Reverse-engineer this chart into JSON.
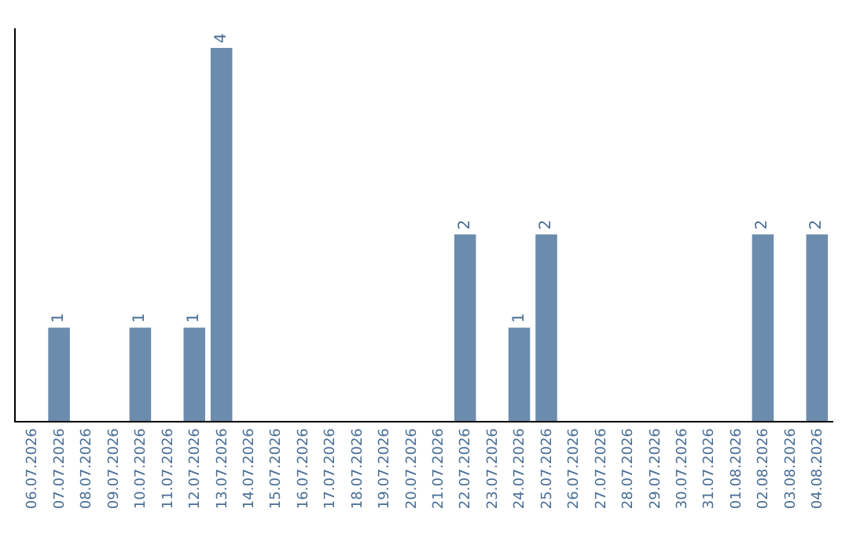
{
  "chart_data": {
    "type": "bar",
    "categories": [
      "06.07.2026",
      "07.07.2026",
      "08.07.2026",
      "09.07.2026",
      "10.07.2026",
      "11.07.2026",
      "12.07.2026",
      "13.07.2026",
      "14.07.2026",
      "15.07.2026",
      "16.07.2026",
      "17.07.2026",
      "18.07.2026",
      "19.07.2026",
      "20.07.2026",
      "21.07.2026",
      "22.07.2026",
      "23.07.2026",
      "24.07.2026",
      "25.07.2026",
      "26.07.2026",
      "27.07.2026",
      "28.07.2026",
      "29.07.2026",
      "30.07.2026",
      "31.07.2026",
      "01.08.2026",
      "02.08.2026",
      "03.08.2026",
      "04.08.2026"
    ],
    "values": [
      0,
      1,
      0,
      0,
      1,
      0,
      1,
      4,
      0,
      0,
      0,
      0,
      0,
      0,
      0,
      0,
      2,
      0,
      1,
      2,
      0,
      0,
      0,
      0,
      0,
      0,
      0,
      2,
      0,
      2
    ],
    "value_labels": [
      null,
      "1",
      null,
      null,
      "1",
      null,
      "1",
      "4",
      null,
      null,
      null,
      null,
      null,
      null,
      null,
      null,
      "2",
      null,
      "1",
      "2",
      null,
      null,
      null,
      null,
      null,
      null,
      null,
      "2",
      null,
      "2"
    ],
    "color": "#6b8cad",
    "tick_labels": "x"
  }
}
